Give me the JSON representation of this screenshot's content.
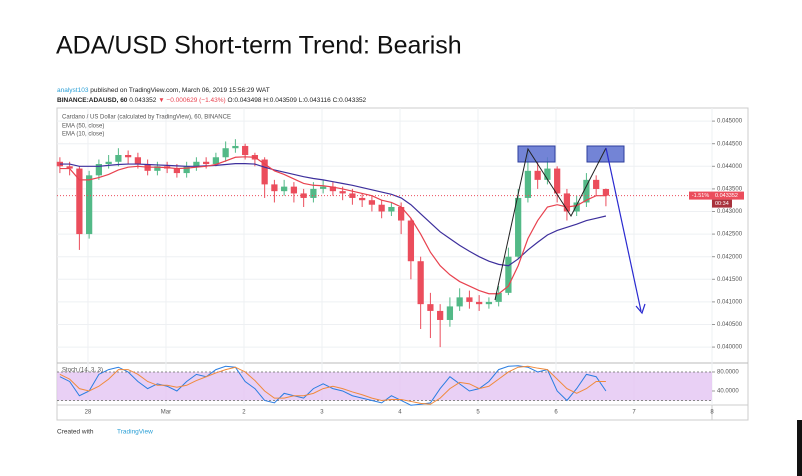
{
  "page": {
    "title": "ADA/USD Short-term Trend: Bearish",
    "author": "analyst103",
    "published": "published on TradingView.com, March 06, 2019 15:56:29 WAT",
    "symbol": "BINANCE:ADAUSD, 60",
    "price": "0.043352",
    "change": "▼ −0.000629 (−1.43%)",
    "ohlc": "O:0.043498 H:0.043509 L:0.043116 C:0.043352",
    "footer_prefix": "Created with",
    "footer_brand": "TradingView"
  },
  "chart_data": [
    {
      "type": "candlestick",
      "legend_title": "Cardano / US Dollar (calculated by TradingView), 60, BINANCE",
      "up_color": "#53b987",
      "down_color": "#eb4d5c",
      "x": [
        -0.36,
        -0.235,
        -0.11,
        0.015,
        0.14,
        0.265,
        0.39,
        0.515,
        0.64,
        0.765,
        0.89,
        1.015,
        1.14,
        1.265,
        1.39,
        1.515,
        1.64,
        1.765,
        1.89,
        2.015,
        2.14,
        2.265,
        2.39,
        2.515,
        2.64,
        2.765,
        2.89,
        3.015,
        3.14,
        3.265,
        3.39,
        3.515,
        3.64,
        3.765,
        3.89,
        4.015,
        4.14,
        4.265,
        4.39,
        4.515,
        4.64,
        4.765,
        4.89,
        5.015,
        5.14,
        5.265,
        5.39,
        5.515,
        5.64,
        5.765,
        5.89,
        6.015,
        6.14,
        6.265,
        6.39,
        6.515,
        6.64
      ],
      "open": [
        0.0441,
        0.044,
        0.04395,
        0.0425,
        0.0438,
        0.04405,
        0.0441,
        0.04425,
        0.0442,
        0.04405,
        0.0439,
        0.044,
        0.04395,
        0.04385,
        0.044,
        0.0441,
        0.04405,
        0.0442,
        0.0444,
        0.04445,
        0.04425,
        0.04415,
        0.0436,
        0.04345,
        0.04355,
        0.0434,
        0.0433,
        0.0435,
        0.04355,
        0.04345,
        0.0434,
        0.0433,
        0.04325,
        0.04315,
        0.043,
        0.0431,
        0.0428,
        0.0419,
        0.04095,
        0.0408,
        0.0406,
        0.0409,
        0.0411,
        0.041,
        0.04095,
        0.041,
        0.0412,
        0.042,
        0.0433,
        0.0439,
        0.0437,
        0.04395,
        0.0434,
        0.043,
        0.0432,
        0.0437,
        0.043498
      ],
      "high": [
        0.0442,
        0.0441,
        0.044,
        0.0439,
        0.04415,
        0.04425,
        0.0444,
        0.04435,
        0.0443,
        0.04415,
        0.0441,
        0.0441,
        0.04405,
        0.0441,
        0.0442,
        0.0442,
        0.0443,
        0.04455,
        0.0446,
        0.0445,
        0.0443,
        0.0442,
        0.0437,
        0.0437,
        0.04365,
        0.0435,
        0.04365,
        0.0437,
        0.04365,
        0.04355,
        0.0435,
        0.0434,
        0.04335,
        0.04325,
        0.0432,
        0.0432,
        0.04285,
        0.042,
        0.0412,
        0.04095,
        0.0411,
        0.0413,
        0.04125,
        0.04115,
        0.0411,
        0.04135,
        0.0422,
        0.0435,
        0.0444,
        0.0441,
        0.0442,
        0.044,
        0.0435,
        0.04335,
        0.04385,
        0.0438,
        0.043509
      ],
      "low": [
        0.04385,
        0.0438,
        0.04215,
        0.0424,
        0.0437,
        0.04395,
        0.044,
        0.04405,
        0.04395,
        0.0438,
        0.0438,
        0.04385,
        0.04375,
        0.04375,
        0.0439,
        0.04395,
        0.044,
        0.0441,
        0.0443,
        0.04415,
        0.044,
        0.0433,
        0.0432,
        0.04335,
        0.0432,
        0.0431,
        0.0432,
        0.0434,
        0.04335,
        0.04325,
        0.04315,
        0.0431,
        0.043,
        0.04285,
        0.0429,
        0.0425,
        0.0415,
        0.0404,
        0.0402,
        0.04,
        0.04045,
        0.0408,
        0.04085,
        0.0408,
        0.04085,
        0.0409,
        0.04115,
        0.04195,
        0.0432,
        0.0435,
        0.0436,
        0.0432,
        0.0428,
        0.0429,
        0.0431,
        0.04335,
        0.043116
      ],
      "close": [
        0.044,
        0.04395,
        0.0425,
        0.0438,
        0.04405,
        0.0441,
        0.04425,
        0.0442,
        0.04405,
        0.0439,
        0.044,
        0.04395,
        0.04385,
        0.044,
        0.0441,
        0.04405,
        0.0442,
        0.0444,
        0.04445,
        0.04425,
        0.04415,
        0.0436,
        0.04345,
        0.04355,
        0.0434,
        0.0433,
        0.0435,
        0.04355,
        0.04345,
        0.0434,
        0.0433,
        0.04325,
        0.04315,
        0.043,
        0.0431,
        0.0428,
        0.0419,
        0.04095,
        0.0408,
        0.0406,
        0.0409,
        0.0411,
        0.041,
        0.04095,
        0.041,
        0.0412,
        0.042,
        0.0433,
        0.0439,
        0.0437,
        0.04395,
        0.0434,
        0.043,
        0.0432,
        0.0437,
        0.043498,
        0.043352
      ],
      "series": [
        {
          "name": "EMA (50, close)",
          "color": "#3d2f9c",
          "values": [
            0.04405,
            0.04405,
            0.044,
            0.044,
            0.044,
            0.04402,
            0.04404,
            0.04405,
            0.04405,
            0.04404,
            0.04403,
            0.04402,
            0.04401,
            0.044,
            0.044,
            0.04401,
            0.04402,
            0.04404,
            0.04406,
            0.04406,
            0.04405,
            0.04398,
            0.04392,
            0.04387,
            0.04382,
            0.04377,
            0.04373,
            0.0437,
            0.04366,
            0.04362,
            0.04358,
            0.04353,
            0.04348,
            0.04343,
            0.04338,
            0.0433,
            0.04315,
            0.04295,
            0.04275,
            0.04255,
            0.0424,
            0.04225,
            0.04212,
            0.042,
            0.0419,
            0.04183,
            0.0418,
            0.04195,
            0.04215,
            0.04232,
            0.04248,
            0.04258,
            0.04265,
            0.04272,
            0.0428,
            0.04285,
            0.0429
          ]
        },
        {
          "name": "EMA (10, close)",
          "color": "#e8424f",
          "values": [
            0.04395,
            0.04395,
            0.0437,
            0.0437,
            0.04375,
            0.04382,
            0.04392,
            0.04398,
            0.044,
            0.04398,
            0.04398,
            0.04397,
            0.04395,
            0.04396,
            0.04398,
            0.044,
            0.04404,
            0.04412,
            0.0442,
            0.04421,
            0.0442,
            0.04405,
            0.0439,
            0.04382,
            0.04372,
            0.04362,
            0.04358,
            0.04357,
            0.04354,
            0.0435,
            0.04345,
            0.0434,
            0.04335,
            0.04325,
            0.0432,
            0.0431,
            0.04285,
            0.0425,
            0.0421,
            0.0418,
            0.0416,
            0.04145,
            0.04135,
            0.04125,
            0.04118,
            0.04118,
            0.04135,
            0.0418,
            0.0424,
            0.0428,
            0.0431,
            0.04315,
            0.0431,
            0.04313,
            0.04325,
            0.04335,
            0.04335
          ]
        }
      ],
      "xlim": [
        -0.397,
        8.0
      ],
      "xticks": [
        {
          "value": 0,
          "label": "28"
        },
        {
          "value": 1,
          "label": "Mar"
        },
        2,
        3,
        4,
        5,
        6,
        7,
        8
      ],
      "ylim": [
        0.03967,
        0.04529
      ],
      "yticks": [
        {
          "value": 0.045,
          "label": "0.045000"
        },
        {
          "value": 0.0445,
          "label": "0.044500"
        },
        {
          "value": 0.044,
          "label": "0.044000"
        },
        {
          "value": 0.0435,
          "label": "0.043500"
        },
        {
          "value": 0.043,
          "label": "0.043000"
        },
        {
          "value": 0.0425,
          "label": "0.042500"
        },
        {
          "value": 0.042,
          "label": "0.042000"
        },
        {
          "value": 0.0415,
          "label": "0.041500"
        },
        {
          "value": 0.041,
          "label": "0.041000"
        },
        {
          "value": 0.0405,
          "label": "0.040500"
        },
        {
          "value": 0.04,
          "label": "0.040000"
        }
      ],
      "grid": true,
      "last_price": {
        "value": 0.043352,
        "label": "0.043352"
      },
      "change_label": "-1.51%",
      "countdown": "00:34"
    },
    {
      "type": "line",
      "title": "Stoch (14, 3, 3)",
      "band": [
        20,
        80
      ],
      "band_color": "#e3c4f2",
      "ylim": [
        10.5,
        96.8
      ],
      "yticks": [
        {
          "value": 80,
          "label": "80.0000"
        },
        {
          "value": 40,
          "label": "40.0000"
        }
      ],
      "series": [
        {
          "color": "#2a7de1",
          "values": [
            70,
            60,
            30,
            40,
            75,
            85,
            90,
            80,
            60,
            45,
            55,
            50,
            40,
            60,
            75,
            70,
            85,
            92,
            90,
            60,
            45,
            20,
            15,
            35,
            30,
            25,
            45,
            55,
            45,
            40,
            30,
            25,
            20,
            15,
            30,
            20,
            10,
            12,
            15,
            45,
            70,
            55,
            40,
            45,
            60,
            85,
            92,
            93,
            90,
            80,
            85,
            40,
            20,
            45,
            75,
            70,
            40
          ]
        },
        {
          "color": "#f08a3c",
          "values": [
            75,
            65,
            45,
            40,
            50,
            65,
            85,
            85,
            75,
            60,
            52,
            52,
            48,
            52,
            62,
            70,
            78,
            85,
            90,
            80,
            62,
            40,
            25,
            25,
            30,
            30,
            35,
            45,
            50,
            45,
            38,
            32,
            25,
            20,
            22,
            22,
            18,
            14,
            12,
            25,
            45,
            58,
            55,
            45,
            50,
            65,
            80,
            90,
            92,
            88,
            85,
            65,
            45,
            35,
            45,
            60,
            60
          ]
        }
      ]
    }
  ]
}
